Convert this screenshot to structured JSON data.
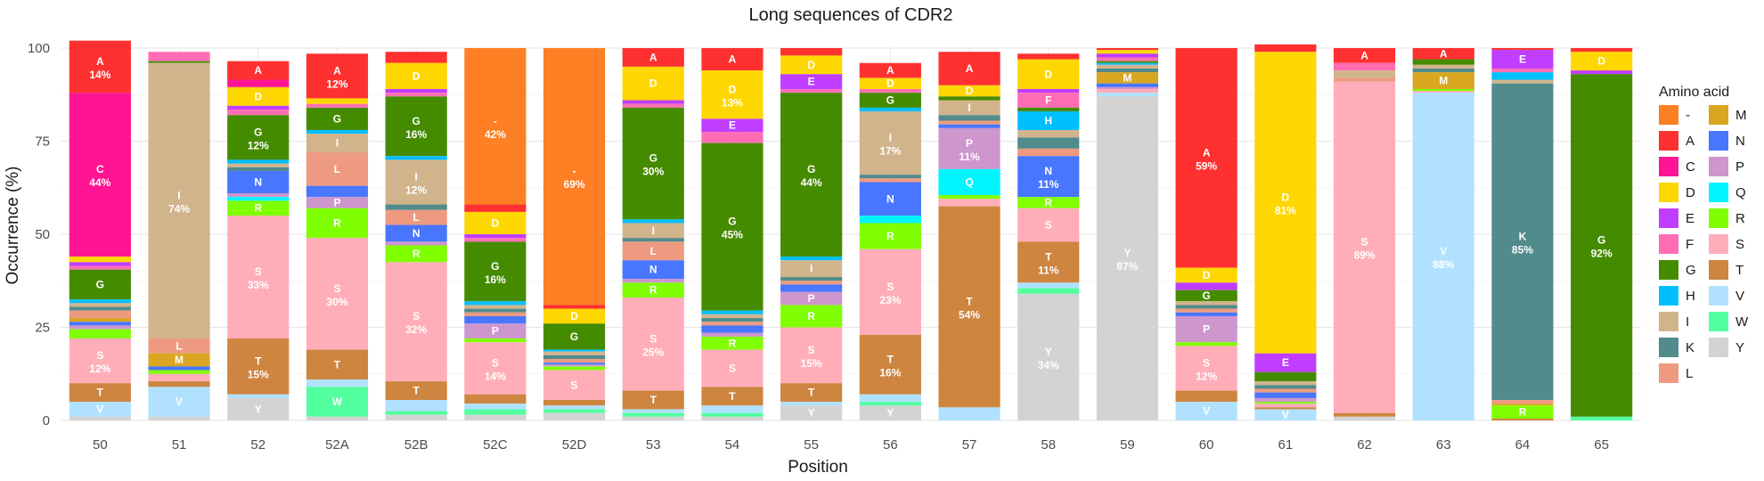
{
  "chart_data": {
    "type": "bar",
    "stacked": true,
    "title": "Long sequences of CDR2",
    "xlabel": "Position",
    "ylabel": "Occurrence (%)",
    "ylim": [
      0,
      100
    ],
    "yticks": [
      0,
      25,
      50,
      75,
      100
    ],
    "grid": true,
    "legend_position": "right",
    "legend_title": "Amino acid",
    "stack_order": [
      "-",
      "A",
      "C",
      "D",
      "E",
      "F",
      "G",
      "H",
      "I",
      "K",
      "L",
      "M",
      "N",
      "P",
      "Q",
      "R",
      "S",
      "T",
      "V",
      "W",
      "Y"
    ],
    "colors": {
      "-": "#FF7F24",
      "A": "#FF3030",
      "C": "#FF1493",
      "D": "#FFD700",
      "E": "#BF3EFF",
      "F": "#FF6EB4",
      "G": "#458B00",
      "H": "#00BFFF",
      "I": "#D2B48C",
      "K": "#528B8B",
      "L": "#EE9A80",
      "M": "#DAA520",
      "N": "#4876FF",
      "P": "#CD96CD",
      "Q": "#00F5FF",
      "R": "#7FFF00",
      "S": "#FFAEB9",
      "T": "#CD853F",
      "V": "#B0E2FF",
      "W": "#54FF9F",
      "Y": "#D3D3D3"
    },
    "categories": [
      "50",
      "51",
      "52",
      "52A",
      "52B",
      "52C",
      "52D",
      "53",
      "54",
      "55",
      "56",
      "57",
      "58",
      "59",
      "60",
      "61",
      "62",
      "63",
      "64",
      "65"
    ],
    "bars": [
      {
        "position": "50",
        "segments": {
          "A": 14,
          "C": 44,
          "D": 1.5,
          "E": 1,
          "F": 1,
          "G": 8,
          "H": 1,
          "I": 1,
          "K": 1,
          "L": 2,
          "M": 1,
          "N": 1,
          "P": 1,
          "R": 2.5,
          "S": 12,
          "T": 5,
          "V": 4,
          "Y": 1
        },
        "labels": {
          "A": "14%",
          "C": "44%",
          "G": "",
          "S": "12%",
          "T": "",
          "V": ""
        }
      },
      {
        "position": "51",
        "segments": {
          "F": 2.5,
          "G": 0.5,
          "I": 74,
          "L": 4,
          "M": 3.5,
          "N": 1,
          "R": 1,
          "S": 2,
          "T": 1.5,
          "V": 8,
          "Y": 1
        },
        "labels": {
          "I": "74%",
          "L": "",
          "M": "",
          "V": ""
        }
      },
      {
        "position": "52",
        "segments": {
          "A": 5,
          "C": 2,
          "D": 5,
          "E": 1,
          "F": 1.5,
          "G": 12,
          "H": 1,
          "I": 1,
          "K": 1,
          "N": 6,
          "P": 1,
          "Q": 1,
          "R": 4,
          "S": 33,
          "T": 15,
          "V": 1,
          "Y": 6
        },
        "labels": {
          "A": "",
          "D": "",
          "G": "12%",
          "N": "",
          "R": "",
          "S": "33%",
          "T": "15%",
          "Y": ""
        }
      },
      {
        "position": "52A",
        "segments": {
          "A": 12,
          "D": 1.5,
          "F": 1,
          "G": 6,
          "H": 1,
          "I": 5,
          "L": 9,
          "N": 3,
          "P": 3,
          "R": 8,
          "S": 30,
          "T": 8,
          "V": 2,
          "W": 8,
          "Y": 1
        },
        "labels": {
          "A": "12%",
          "G": "",
          "I": "",
          "L": "",
          "P": "",
          "R": "",
          "S": "30%",
          "T": "",
          "W": ""
        }
      },
      {
        "position": "52B",
        "segments": {
          "A": 3,
          "D": 7,
          "E": 1,
          "F": 1,
          "G": 16,
          "H": 1,
          "I": 12,
          "K": 1.5,
          "L": 4,
          "N": 4.5,
          "P": 1,
          "R": 4.5,
          "S": 32,
          "T": 5,
          "V": 3,
          "W": 1,
          "Y": 1.5
        },
        "labels": {
          "D": "",
          "G": "16%",
          "I": "12%",
          "L": "",
          "N": "",
          "R": "",
          "S": "32%",
          "T": ""
        }
      },
      {
        "position": "52C",
        "segments": {
          "-": 42,
          "A": 2,
          "D": 6,
          "E": 1,
          "F": 1,
          "G": 16,
          "H": 1,
          "I": 1,
          "K": 1,
          "L": 1,
          "N": 2,
          "P": 4,
          "R": 1,
          "S": 14,
          "T": 2.5,
          "V": 1.5,
          "W": 1.5,
          "Y": 1.5
        },
        "labels": {
          "-": "42%",
          "D": "",
          "G": "16%",
          "P": "",
          "S": "14%"
        }
      },
      {
        "position": "52D",
        "segments": {
          "-": 69,
          "A": 1,
          "D": 4,
          "G": 7,
          "H": 0.5,
          "I": 1,
          "K": 1,
          "L": 1,
          "N": 0.5,
          "P": 0.5,
          "R": 1,
          "S": 8,
          "T": 1.5,
          "V": 1,
          "W": 1,
          "Y": 2
        },
        "labels": {
          "-": "69%",
          "D": "",
          "G": "",
          "S": ""
        }
      },
      {
        "position": "53",
        "segments": {
          "A": 5,
          "D": 9,
          "E": 1,
          "F": 1,
          "G": 30,
          "H": 1,
          "I": 4,
          "K": 1,
          "L": 5,
          "N": 5,
          "P": 1,
          "R": 4,
          "S": 25,
          "T": 5,
          "V": 1,
          "W": 1,
          "Y": 1
        },
        "labels": {
          "A": "",
          "D": "",
          "G": "30%",
          "I": "",
          "L": "",
          "N": "",
          "R": "",
          "S": "25%",
          "T": ""
        }
      },
      {
        "position": "54",
        "segments": {
          "A": 6,
          "D": 13,
          "E": 3.5,
          "F": 3,
          "G": 45,
          "H": 1,
          "I": 1,
          "K": 1,
          "L": 1,
          "N": 2,
          "P": 1,
          "R": 3.5,
          "S": 10,
          "T": 5,
          "V": 2,
          "W": 1,
          "Y": 1
        },
        "labels": {
          "A": "",
          "D": "13%",
          "E": "",
          "G": "45%",
          "R": "",
          "S": "",
          "T": ""
        }
      },
      {
        "position": "55",
        "segments": {
          "A": 2,
          "D": 5,
          "E": 4,
          "F": 1,
          "G": 44,
          "H": 1,
          "I": 4.5,
          "K": 1,
          "L": 1,
          "N": 2,
          "P": 3.5,
          "R": 6,
          "S": 15,
          "T": 5,
          "V": 1,
          "Y": 4
        },
        "labels": {
          "D": "",
          "E": "",
          "G": "44%",
          "I": "",
          "P": "",
          "R": "",
          "S": "15%",
          "T": "",
          "Y": ""
        }
      },
      {
        "position": "56",
        "segments": {
          "A": 4,
          "D": 3,
          "F": 1,
          "G": 4,
          "H": 1,
          "I": 17,
          "K": 1,
          "L": 1,
          "N": 9,
          "Q": 2,
          "R": 7,
          "S": 23,
          "T": 16,
          "V": 2,
          "W": 1,
          "Y": 4
        },
        "labels": {
          "A": "",
          "D": "",
          "G": "",
          "I": "17%",
          "N": "",
          "R": "",
          "S": "23%",
          "T": "16%",
          "Y": ""
        }
      },
      {
        "position": "57",
        "segments": {
          "A": 9,
          "D": 3,
          "G": 1,
          "I": 4,
          "K": 1.5,
          "L": 1,
          "N": 1,
          "P": 11,
          "Q": 7,
          "R": 1,
          "S": 2,
          "T": 54,
          "V": 3.5
        },
        "labels": {
          "A": "",
          "D": "",
          "I": "",
          "P": "11%",
          "Q": "",
          "T": "54%"
        }
      },
      {
        "position": "58",
        "segments": {
          "A": 1.5,
          "D": 8,
          "E": 1,
          "F": 4,
          "G": 1,
          "H": 5,
          "I": 2,
          "K": 3,
          "L": 2,
          "N": 11,
          "R": 3,
          "S": 9,
          "T": 11,
          "V": 1.5,
          "W": 1.5,
          "Y": 34
        },
        "labels": {
          "D": "",
          "F": "",
          "H": "",
          "N": "11%",
          "R": "",
          "S": "",
          "T": "11%",
          "Y": "34%"
        }
      },
      {
        "position": "59",
        "segments": {
          "A": 0.5,
          "D": 1,
          "E": 1,
          "F": 1,
          "G": 0.5,
          "H": 0.5,
          "I": 1,
          "K": 1,
          "M": 3,
          "N": 1,
          "P": 0.5,
          "S": 1,
          "V": 1,
          "Y": 87
        },
        "labels": {
          "M": "",
          "Y": "87%"
        }
      },
      {
        "position": "60",
        "segments": {
          "A": 59,
          "D": 4,
          "E": 2,
          "G": 3,
          "I": 1,
          "K": 1,
          "L": 1,
          "N": 1,
          "P": 7,
          "R": 1,
          "S": 12,
          "T": 3,
          "V": 5
        },
        "labels": {
          "A": "59%",
          "D": "",
          "G": "",
          "P": "",
          "S": "12%",
          "V": ""
        }
      },
      {
        "position": "61",
        "segments": {
          "A": 2,
          "D": 81,
          "E": 5,
          "G": 2.5,
          "I": 1,
          "K": 1,
          "L": 1,
          "N": 1.5,
          "P": 1,
          "R": 0.5,
          "S": 1,
          "T": 0.5,
          "V": 3
        },
        "labels": {
          "D": "81%",
          "E": "",
          "V": ""
        }
      },
      {
        "position": "62",
        "segments": {
          "A": 4,
          "F": 2,
          "I": 2,
          "L": 1,
          "S": 89,
          "T": 1,
          "Y": 1
        },
        "labels": {
          "A": "",
          "S": "89%"
        }
      },
      {
        "position": "63",
        "segments": {
          "A": 3,
          "G": 1.5,
          "I": 1,
          "K": 1,
          "M": 4.5,
          "R": 0.5,
          "S": 0.5,
          "V": 88
        },
        "labels": {
          "A": "",
          "M": "",
          "V": "88%"
        }
      },
      {
        "position": "64",
        "segments": {
          "A": 0.5,
          "E": 5,
          "F": 1,
          "H": 2,
          "I": 1,
          "K": 85,
          "L": 1,
          "M": 0.5,
          "R": 3.5,
          "T": 0.5
        },
        "labels": {
          "E": "",
          "K": "85%",
          "R": ""
        }
      },
      {
        "position": "65",
        "segments": {
          "A": 1,
          "D": 5,
          "E": 1,
          "G": 92,
          "W": 1
        },
        "labels": {
          "D": "",
          "G": "92%"
        }
      }
    ]
  }
}
